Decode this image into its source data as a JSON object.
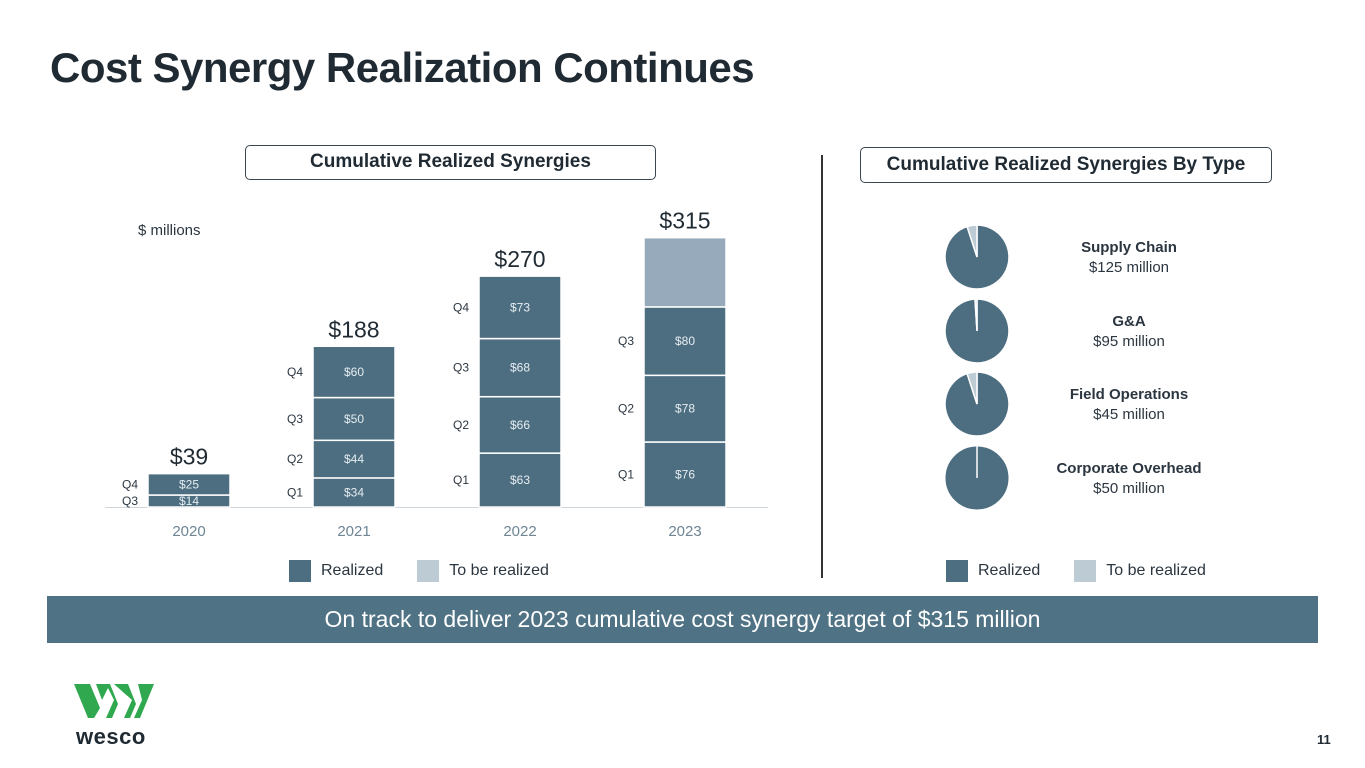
{
  "title": "Cost Synergy Realization Continues",
  "left_header": "Cumulative Realized Synergies",
  "right_header": "Cumulative Realized Synergies By Type",
  "colors": {
    "realized": "#4d6e80",
    "to_be_realized": "#96aabb",
    "legend_light": "#bccbd4",
    "banner": "#4f7284"
  },
  "chart_data": [
    {
      "type": "bar",
      "stacked": true,
      "unit_label": "$ millions",
      "categories": [
        "2020",
        "2021",
        "2022",
        "2023"
      ],
      "totals": [
        "$39",
        "$188",
        "$270",
        "$315"
      ],
      "total_values": [
        39,
        188,
        270,
        315
      ],
      "stacks": [
        {
          "year": "2020",
          "segments": [
            {
              "quarter": "Q3",
              "label": "$14",
              "value": 14,
              "status": "realized"
            },
            {
              "quarter": "Q4",
              "label": "$25",
              "value": 25,
              "status": "realized"
            }
          ]
        },
        {
          "year": "2021",
          "segments": [
            {
              "quarter": "Q1",
              "label": "$34",
              "value": 34,
              "status": "realized"
            },
            {
              "quarter": "Q2",
              "label": "$44",
              "value": 44,
              "status": "realized"
            },
            {
              "quarter": "Q3",
              "label": "$50",
              "value": 50,
              "status": "realized"
            },
            {
              "quarter": "Q4",
              "label": "$60",
              "value": 60,
              "status": "realized"
            }
          ]
        },
        {
          "year": "2022",
          "segments": [
            {
              "quarter": "Q1",
              "label": "$63",
              "value": 63,
              "status": "realized"
            },
            {
              "quarter": "Q2",
              "label": "$66",
              "value": 66,
              "status": "realized"
            },
            {
              "quarter": "Q3",
              "label": "$68",
              "value": 68,
              "status": "realized"
            },
            {
              "quarter": "Q4",
              "label": "$73",
              "value": 73,
              "status": "realized"
            }
          ]
        },
        {
          "year": "2023",
          "segments": [
            {
              "quarter": "Q1",
              "label": "$76",
              "value": 76,
              "status": "realized"
            },
            {
              "quarter": "Q2",
              "label": "$78",
              "value": 78,
              "status": "realized"
            },
            {
              "quarter": "Q3",
              "label": "$80",
              "value": 80,
              "status": "realized"
            },
            {
              "quarter": "",
              "label": "",
              "value": 81,
              "status": "to_be_realized"
            }
          ]
        }
      ],
      "legend": [
        "Realized",
        "To be realized"
      ]
    },
    {
      "type": "pie",
      "title": "Cumulative Realized Synergies By Type",
      "items": [
        {
          "name": "Supply Chain",
          "amount": "$125 million",
          "realized_fraction": 0.95
        },
        {
          "name": "G&A",
          "amount": "$95 million",
          "realized_fraction": 0.99
        },
        {
          "name": "Field Operations",
          "amount": "$45 million",
          "realized_fraction": 0.95
        },
        {
          "name": "Corporate Overhead",
          "amount": "$50 million",
          "realized_fraction": 1.0
        }
      ],
      "legend": [
        "Realized",
        "To be realized"
      ]
    }
  ],
  "legend": {
    "realized": "Realized",
    "to_be_realized": "To be realized"
  },
  "banner": "On track to deliver 2023 cumulative cost synergy target of $315 million",
  "logo_text": "wesco",
  "page_number": "11"
}
